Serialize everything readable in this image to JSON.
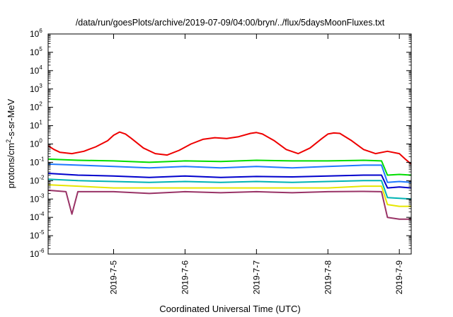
{
  "chart_data": {
    "type": "line",
    "title": "/data/run/goesPlots/archive/2019-07-09/04:00/bryn/../flux/5daysMoonFluxes.txt",
    "xlabel": "Coordinated Universal Time (UTC)",
    "ylabel": {
      "before": "protons/cm",
      "sup": "2",
      "after": "-s-sr-MeV"
    },
    "y_scale": "log",
    "ylim": [
      1e-06,
      1000000.0
    ],
    "yticks": [
      {
        "base": "10",
        "exp": "-6",
        "value": 1e-06
      },
      {
        "base": "10",
        "exp": "-5",
        "value": 1e-05
      },
      {
        "base": "10",
        "exp": "-4",
        "value": 0.0001
      },
      {
        "base": "10",
        "exp": "-3",
        "value": 0.001
      },
      {
        "base": "10",
        "exp": "-2",
        "value": 0.01
      },
      {
        "base": "10",
        "exp": "-1",
        "value": 0.1
      },
      {
        "base": "10",
        "exp": "0",
        "value": 1
      },
      {
        "base": "10",
        "exp": "1",
        "value": 10
      },
      {
        "base": "10",
        "exp": "2",
        "value": 100
      },
      {
        "base": "10",
        "exp": "3",
        "value": 1000
      },
      {
        "base": "10",
        "exp": "4",
        "value": 10000
      },
      {
        "base": "10",
        "exp": "5",
        "value": 100000
      },
      {
        "base": "10",
        "exp": "6",
        "value": 1000000
      }
    ],
    "xlim": [
      "2019-07-04T02:00",
      "2019-07-09T04:00"
    ],
    "xticks": [
      {
        "label": "2019-7-5",
        "value": "2019-07-05T00:00"
      },
      {
        "label": "2019-7-6",
        "value": "2019-07-06T00:00"
      },
      {
        "label": "2019-7-7",
        "value": "2019-07-07T00:00"
      },
      {
        "label": "2019-7-8",
        "value": "2019-07-08T00:00"
      },
      {
        "label": "2019-7-9",
        "value": "2019-07-09T00:00"
      }
    ],
    "grid": false,
    "legend": "none",
    "series": [
      {
        "color": "#ee0000",
        "points": [
          [
            "2019-07-04T02:00",
            0.8
          ],
          [
            "2019-07-04T04:00",
            0.5
          ],
          [
            "2019-07-04T06:00",
            0.35
          ],
          [
            "2019-07-04T10:00",
            0.3
          ],
          [
            "2019-07-04T14:00",
            0.4
          ],
          [
            "2019-07-04T18:00",
            0.7
          ],
          [
            "2019-07-04T22:00",
            1.5
          ],
          [
            "2019-07-05T00:00",
            3.0
          ],
          [
            "2019-07-05T02:00",
            4.5
          ],
          [
            "2019-07-05T04:00",
            3.5
          ],
          [
            "2019-07-05T06:00",
            2.0
          ],
          [
            "2019-07-05T10:00",
            0.6
          ],
          [
            "2019-07-05T14:00",
            0.3
          ],
          [
            "2019-07-05T18:00",
            0.25
          ],
          [
            "2019-07-05T22:00",
            0.45
          ],
          [
            "2019-07-06T02:00",
            1.0
          ],
          [
            "2019-07-06T06:00",
            1.8
          ],
          [
            "2019-07-06T10:00",
            2.2
          ],
          [
            "2019-07-06T14:00",
            2.0
          ],
          [
            "2019-07-06T18:00",
            2.5
          ],
          [
            "2019-07-06T22:00",
            3.8
          ],
          [
            "2019-07-07T00:00",
            4.2
          ],
          [
            "2019-07-07T02:00",
            3.5
          ],
          [
            "2019-07-07T06:00",
            1.5
          ],
          [
            "2019-07-07T10:00",
            0.5
          ],
          [
            "2019-07-07T14:00",
            0.3
          ],
          [
            "2019-07-07T18:00",
            0.6
          ],
          [
            "2019-07-07T22:00",
            2.0
          ],
          [
            "2019-07-08T00:00",
            3.5
          ],
          [
            "2019-07-08T02:00",
            4.0
          ],
          [
            "2019-07-08T04:00",
            3.8
          ],
          [
            "2019-07-08T08:00",
            1.5
          ],
          [
            "2019-07-08T12:00",
            0.5
          ],
          [
            "2019-07-08T16:00",
            0.3
          ],
          [
            "2019-07-08T20:00",
            0.4
          ],
          [
            "2019-07-09T00:00",
            0.3
          ],
          [
            "2019-07-09T02:00",
            0.15
          ],
          [
            "2019-07-09T04:00",
            0.08
          ]
        ]
      },
      {
        "color": "#00dd00",
        "points": [
          [
            "2019-07-04T02:00",
            0.15
          ],
          [
            "2019-07-04T12:00",
            0.13
          ],
          [
            "2019-07-05T00:00",
            0.12
          ],
          [
            "2019-07-05T12:00",
            0.1
          ],
          [
            "2019-07-06T00:00",
            0.12
          ],
          [
            "2019-07-06T12:00",
            0.11
          ],
          [
            "2019-07-07T00:00",
            0.13
          ],
          [
            "2019-07-07T12:00",
            0.12
          ],
          [
            "2019-07-08T00:00",
            0.12
          ],
          [
            "2019-07-08T12:00",
            0.13
          ],
          [
            "2019-07-08T18:00",
            0.12
          ],
          [
            "2019-07-08T20:00",
            0.02
          ],
          [
            "2019-07-09T00:00",
            0.022
          ],
          [
            "2019-07-09T04:00",
            0.02
          ]
        ]
      },
      {
        "color": "#1e78ff",
        "points": [
          [
            "2019-07-04T02:00",
            0.08
          ],
          [
            "2019-07-04T12:00",
            0.07
          ],
          [
            "2019-07-05T00:00",
            0.06
          ],
          [
            "2019-07-05T12:00",
            0.05
          ],
          [
            "2019-07-06T00:00",
            0.06
          ],
          [
            "2019-07-06T12:00",
            0.05
          ],
          [
            "2019-07-07T00:00",
            0.06
          ],
          [
            "2019-07-07T12:00",
            0.05
          ],
          [
            "2019-07-08T00:00",
            0.06
          ],
          [
            "2019-07-08T12:00",
            0.07
          ],
          [
            "2019-07-08T18:00",
            0.07
          ],
          [
            "2019-07-08T20:00",
            0.008
          ],
          [
            "2019-07-09T00:00",
            0.009
          ],
          [
            "2019-07-09T04:00",
            0.008
          ]
        ]
      },
      {
        "color": "#0000cc",
        "points": [
          [
            "2019-07-04T02:00",
            0.025
          ],
          [
            "2019-07-04T12:00",
            0.02
          ],
          [
            "2019-07-05T00:00",
            0.018
          ],
          [
            "2019-07-05T12:00",
            0.015
          ],
          [
            "2019-07-06T00:00",
            0.018
          ],
          [
            "2019-07-06T12:00",
            0.015
          ],
          [
            "2019-07-07T00:00",
            0.017
          ],
          [
            "2019-07-07T12:00",
            0.016
          ],
          [
            "2019-07-08T00:00",
            0.018
          ],
          [
            "2019-07-08T12:00",
            0.02
          ],
          [
            "2019-07-08T18:00",
            0.02
          ],
          [
            "2019-07-08T20:00",
            0.004
          ],
          [
            "2019-07-09T00:00",
            0.0045
          ],
          [
            "2019-07-09T04:00",
            0.004
          ]
        ]
      },
      {
        "color": "#00b4b4",
        "points": [
          [
            "2019-07-04T02:00",
            0.012
          ],
          [
            "2019-07-04T12:00",
            0.01
          ],
          [
            "2019-07-05T00:00",
            0.009
          ],
          [
            "2019-07-05T12:00",
            0.008
          ],
          [
            "2019-07-06T00:00",
            0.009
          ],
          [
            "2019-07-06T12:00",
            0.008
          ],
          [
            "2019-07-07T00:00",
            0.009
          ],
          [
            "2019-07-07T12:00",
            0.008
          ],
          [
            "2019-07-08T00:00",
            0.009
          ],
          [
            "2019-07-08T12:00",
            0.01
          ],
          [
            "2019-07-08T18:00",
            0.01
          ],
          [
            "2019-07-08T20:00",
            0.0012
          ],
          [
            "2019-07-09T00:00",
            0.0011
          ],
          [
            "2019-07-09T04:00",
            0.001
          ]
        ]
      },
      {
        "color": "#e6e600",
        "points": [
          [
            "2019-07-04T02:00",
            0.006
          ],
          [
            "2019-07-04T12:00",
            0.005
          ],
          [
            "2019-07-05T00:00",
            0.004
          ],
          [
            "2019-07-05T12:00",
            0.004
          ],
          [
            "2019-07-06T00:00",
            0.004
          ],
          [
            "2019-07-06T12:00",
            0.004
          ],
          [
            "2019-07-07T00:00",
            0.004
          ],
          [
            "2019-07-07T12:00",
            0.004
          ],
          [
            "2019-07-08T00:00",
            0.004
          ],
          [
            "2019-07-08T12:00",
            0.005
          ],
          [
            "2019-07-08T18:00",
            0.005
          ],
          [
            "2019-07-08T20:00",
            0.0005
          ],
          [
            "2019-07-09T00:00",
            0.0004
          ],
          [
            "2019-07-09T04:00",
            0.0004
          ]
        ]
      },
      {
        "color": "#993366",
        "points": [
          [
            "2019-07-04T02:00",
            0.003
          ],
          [
            "2019-07-04T08:00",
            0.0025
          ],
          [
            "2019-07-04T10:00",
            0.00015
          ],
          [
            "2019-07-04T12:00",
            0.0025
          ],
          [
            "2019-07-05T00:00",
            0.0025
          ],
          [
            "2019-07-05T12:00",
            0.002
          ],
          [
            "2019-07-06T00:00",
            0.0025
          ],
          [
            "2019-07-06T12:00",
            0.0022
          ],
          [
            "2019-07-07T00:00",
            0.0025
          ],
          [
            "2019-07-07T12:00",
            0.0022
          ],
          [
            "2019-07-08T00:00",
            0.0025
          ],
          [
            "2019-07-08T12:00",
            0.0026
          ],
          [
            "2019-07-08T18:00",
            0.0025
          ],
          [
            "2019-07-08T20:00",
            0.0001
          ],
          [
            "2019-07-09T00:00",
            8e-05
          ],
          [
            "2019-07-09T04:00",
            8e-05
          ]
        ]
      }
    ]
  }
}
